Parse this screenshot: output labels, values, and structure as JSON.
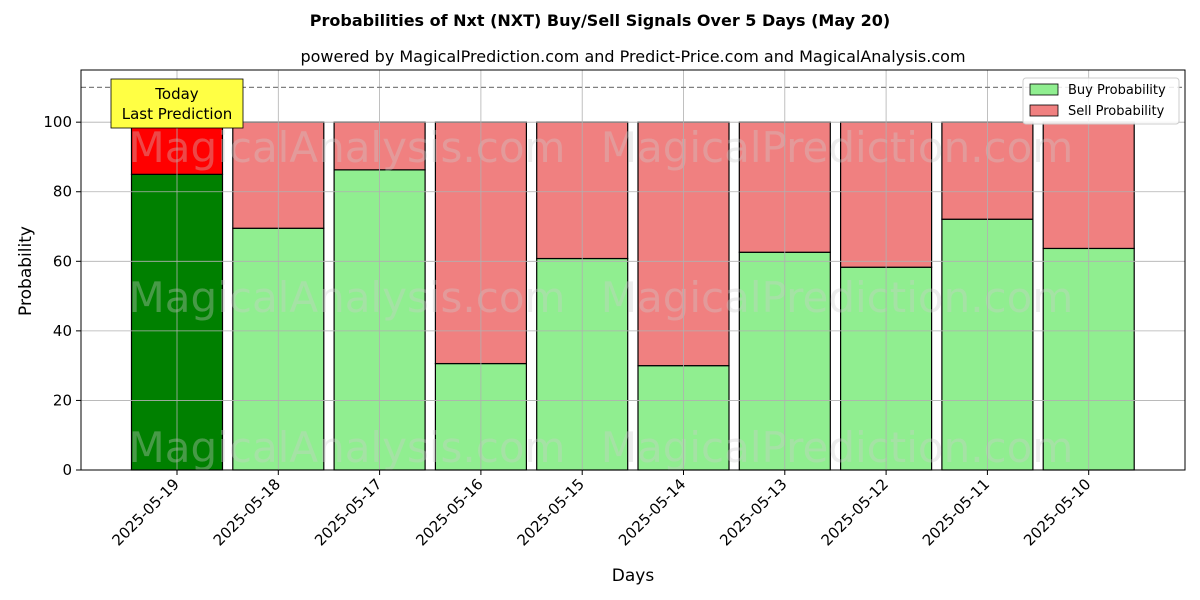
{
  "chart_data": {
    "type": "bar",
    "stacked": true,
    "title": "Probabilities of Nxt (NXT) Buy/Sell Signals Over 5 Days (May 20)",
    "subtitle": "powered by MagicalPrediction.com and Predict-Price.com and MagicalAnalysis.com",
    "xlabel": "Days",
    "ylabel": "Probability",
    "ylim": [
      0,
      115
    ],
    "yticks": [
      0,
      20,
      40,
      60,
      80,
      100
    ],
    "grid": true,
    "legend_position": "top-right",
    "reference_line": 110,
    "categories": [
      "2025-05-19",
      "2025-05-18",
      "2025-05-17",
      "2025-05-16",
      "2025-05-15",
      "2025-05-14",
      "2025-05-13",
      "2025-05-12",
      "2025-05-11",
      "2025-05-10"
    ],
    "series": [
      {
        "name": "Buy Probability",
        "values": [
          85,
          69.5,
          86.3,
          30.6,
          60.8,
          30,
          62.6,
          58.3,
          72.1,
          63.7
        ],
        "color": "#90ee90",
        "highlight_color": "#008000"
      },
      {
        "name": "Sell Probability",
        "values": [
          15,
          30.5,
          13.7,
          69.4,
          39.2,
          70,
          37.4,
          41.7,
          27.9,
          36.3
        ],
        "color": "#f08080",
        "highlight_color": "#ff0000"
      }
    ],
    "annotation": {
      "lines": [
        "Today",
        "Last Prediction"
      ],
      "category_index": 0,
      "background": "#ffff44"
    },
    "watermarks": [
      "MagicalAnalysis.com",
      "MagicalPrediction.com"
    ]
  }
}
